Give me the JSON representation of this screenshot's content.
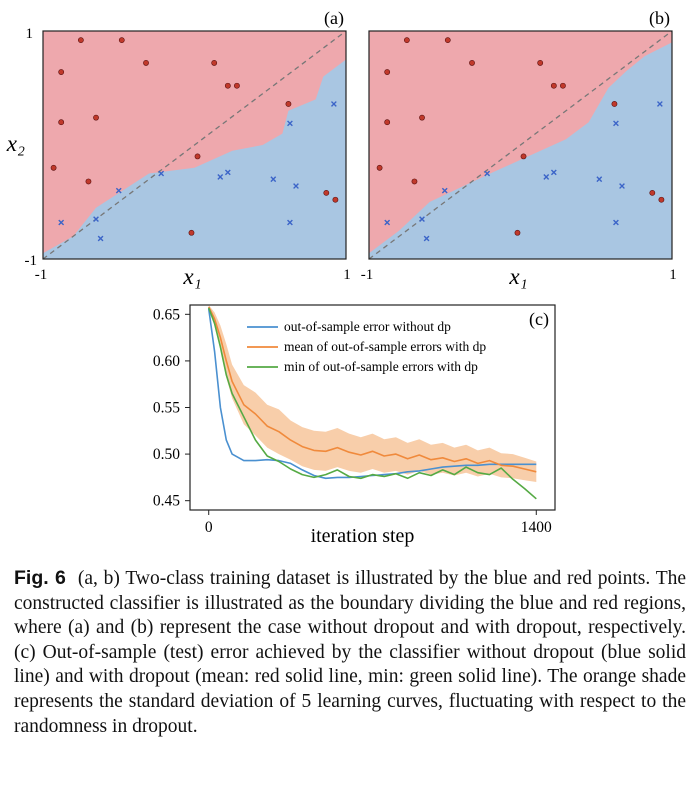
{
  "colors": {
    "red_region": "#eea8ad",
    "blue_region": "#a9c6e2",
    "red_point": "#c0392b",
    "blue_point": "#3b64c8",
    "line_without_dp": "#4a90d0",
    "line_mean_dp": "#f08a3c",
    "line_min_dp": "#55aa44",
    "shade": "#f7c59b",
    "diagonal": "#777777"
  },
  "panel_a": {
    "label": "(a)",
    "xlabel": "x₁",
    "ylabel": "x₂",
    "xticks": [
      "-1",
      "1"
    ],
    "yticks": [
      "1",
      "-1"
    ],
    "xlim": [
      -1,
      1
    ],
    "ylim": [
      -1,
      1
    ],
    "region_boundary": [
      [
        -1,
        -0.95
      ],
      [
        -0.8,
        -0.8
      ],
      [
        -0.65,
        -0.55
      ],
      [
        -0.3,
        -0.25
      ],
      [
        0.0,
        -0.2
      ],
      [
        0.25,
        -0.05
      ],
      [
        0.45,
        0.0
      ],
      [
        0.58,
        0.1
      ],
      [
        0.62,
        0.3
      ],
      [
        0.8,
        0.4
      ],
      [
        0.85,
        0.6
      ],
      [
        1.0,
        0.75
      ]
    ],
    "red_points": [
      [
        -0.75,
        0.92
      ],
      [
        -0.48,
        0.92
      ],
      [
        -0.88,
        0.64
      ],
      [
        -0.32,
        0.72
      ],
      [
        0.13,
        0.72
      ],
      [
        0.22,
        0.52
      ],
      [
        0.28,
        0.52
      ],
      [
        -0.65,
        0.24
      ],
      [
        -0.88,
        0.2
      ],
      [
        -0.93,
        -0.2
      ],
      [
        -0.7,
        -0.32
      ],
      [
        0.02,
        -0.1
      ],
      [
        0.62,
        0.36
      ],
      [
        0.87,
        -0.42
      ],
      [
        0.93,
        -0.48
      ],
      [
        -0.02,
        -0.77
      ]
    ],
    "blue_points": [
      [
        0.92,
        0.36
      ],
      [
        0.63,
        0.19
      ],
      [
        -0.22,
        -0.25
      ],
      [
        -0.5,
        -0.4
      ],
      [
        0.17,
        -0.28
      ],
      [
        0.22,
        -0.24
      ],
      [
        0.52,
        -0.3
      ],
      [
        0.67,
        -0.36
      ],
      [
        -0.65,
        -0.65
      ],
      [
        -0.62,
        -0.82
      ],
      [
        -0.88,
        -0.68
      ],
      [
        0.63,
        -0.68
      ]
    ]
  },
  "panel_b": {
    "label": "(b)",
    "xlabel": "x₁",
    "xticks": [
      "-1",
      "1"
    ],
    "xlim": [
      -1,
      1
    ],
    "ylim": [
      -1,
      1
    ],
    "region_boundary": [
      [
        -1,
        -0.95
      ],
      [
        -0.8,
        -0.75
      ],
      [
        -0.6,
        -0.5
      ],
      [
        -0.2,
        -0.25
      ],
      [
        0.05,
        -0.1
      ],
      [
        0.3,
        0.05
      ],
      [
        0.45,
        0.2
      ],
      [
        0.58,
        0.5
      ],
      [
        0.7,
        0.65
      ],
      [
        0.82,
        0.78
      ],
      [
        1.0,
        0.9
      ]
    ],
    "red_points": [
      [
        -0.75,
        0.92
      ],
      [
        -0.48,
        0.92
      ],
      [
        -0.88,
        0.64
      ],
      [
        -0.32,
        0.72
      ],
      [
        0.13,
        0.72
      ],
      [
        0.22,
        0.52
      ],
      [
        0.28,
        0.52
      ],
      [
        -0.65,
        0.24
      ],
      [
        -0.88,
        0.2
      ],
      [
        -0.93,
        -0.2
      ],
      [
        -0.7,
        -0.32
      ],
      [
        0.02,
        -0.1
      ],
      [
        0.62,
        0.36
      ],
      [
        0.87,
        -0.42
      ],
      [
        0.93,
        -0.48
      ],
      [
        -0.02,
        -0.77
      ]
    ],
    "blue_points": [
      [
        0.92,
        0.36
      ],
      [
        0.63,
        0.19
      ],
      [
        -0.22,
        -0.25
      ],
      [
        -0.5,
        -0.4
      ],
      [
        0.17,
        -0.28
      ],
      [
        0.22,
        -0.24
      ],
      [
        0.52,
        -0.3
      ],
      [
        0.67,
        -0.36
      ],
      [
        -0.65,
        -0.65
      ],
      [
        -0.62,
        -0.82
      ],
      [
        -0.88,
        -0.68
      ],
      [
        0.63,
        -0.68
      ]
    ]
  },
  "chart_data": {
    "type": "line",
    "label": "(c)",
    "xlabel": "iteration step",
    "ylabel": "",
    "xlim": [
      -80,
      1480
    ],
    "ylim": [
      0.44,
      0.66
    ],
    "xticks": [
      0,
      1400
    ],
    "yticks": [
      0.45,
      0.5,
      0.55,
      0.6,
      0.65
    ],
    "ytick_labels": [
      "0.45",
      "0.50",
      "0.55",
      "0.60",
      "0.65"
    ],
    "grid": false,
    "legend_position": "top-right",
    "x": [
      0,
      25,
      50,
      75,
      100,
      150,
      200,
      250,
      300,
      350,
      400,
      450,
      500,
      550,
      600,
      650,
      700,
      750,
      800,
      850,
      900,
      950,
      1000,
      1050,
      1100,
      1150,
      1200,
      1250,
      1300,
      1350,
      1400
    ],
    "series": [
      {
        "name": "out-of-sample error without dp",
        "color": "#4a90d0",
        "values": [
          0.656,
          0.61,
          0.55,
          0.515,
          0.5,
          0.493,
          0.493,
          0.494,
          0.493,
          0.49,
          0.483,
          0.477,
          0.474,
          0.475,
          0.475,
          0.476,
          0.477,
          0.478,
          0.479,
          0.481,
          0.482,
          0.484,
          0.486,
          0.487,
          0.488,
          0.488,
          0.489,
          0.489,
          0.489,
          0.489,
          0.489
        ]
      },
      {
        "name": "mean of out-of-sample errors with dp",
        "color": "#f08a3c",
        "values": [
          0.658,
          0.645,
          0.625,
          0.6,
          0.578,
          0.553,
          0.543,
          0.53,
          0.524,
          0.515,
          0.508,
          0.504,
          0.503,
          0.507,
          0.502,
          0.499,
          0.503,
          0.498,
          0.5,
          0.495,
          0.499,
          0.494,
          0.496,
          0.492,
          0.495,
          0.49,
          0.493,
          0.488,
          0.487,
          0.484,
          0.481
        ]
      },
      {
        "name": "min of out-of-sample errors with dp",
        "color": "#55aa44",
        "values": [
          0.657,
          0.64,
          0.615,
          0.585,
          0.565,
          0.54,
          0.515,
          0.498,
          0.492,
          0.484,
          0.478,
          0.475,
          0.478,
          0.483,
          0.476,
          0.474,
          0.478,
          0.476,
          0.479,
          0.474,
          0.48,
          0.477,
          0.483,
          0.478,
          0.486,
          0.48,
          0.478,
          0.485,
          0.473,
          0.463,
          0.452
        ]
      }
    ],
    "band": {
      "of_series": "mean of out-of-sample errors with dp",
      "lower": [
        0.656,
        0.638,
        0.612,
        0.582,
        0.56,
        0.532,
        0.52,
        0.507,
        0.5,
        0.494,
        0.487,
        0.483,
        0.482,
        0.486,
        0.482,
        0.48,
        0.484,
        0.48,
        0.482,
        0.478,
        0.482,
        0.478,
        0.48,
        0.477,
        0.48,
        0.476,
        0.479,
        0.475,
        0.474,
        0.472,
        0.47
      ],
      "upper": [
        0.66,
        0.652,
        0.638,
        0.618,
        0.596,
        0.574,
        0.566,
        0.553,
        0.548,
        0.536,
        0.529,
        0.525,
        0.524,
        0.528,
        0.522,
        0.518,
        0.522,
        0.516,
        0.518,
        0.512,
        0.516,
        0.51,
        0.512,
        0.507,
        0.51,
        0.504,
        0.507,
        0.501,
        0.5,
        0.496,
        0.492
      ]
    }
  },
  "caption": {
    "label": "Fig. 6",
    "text": "(a, b) Two-class training dataset is illustrated by the blue and red points. The constructed classifier is illustrated as the boundary dividing the blue and red regions, where (a) and (b) represent the case without dropout and with dropout, respectively. (c) Out-of-sample (test) error achieved by the classifier without dropout (blue solid line) and with dropout (mean: red solid line, min: green solid line). The orange shade represents the standard deviation of 5 learning curves, fluctuating with respect to the randomness in dropout."
  }
}
